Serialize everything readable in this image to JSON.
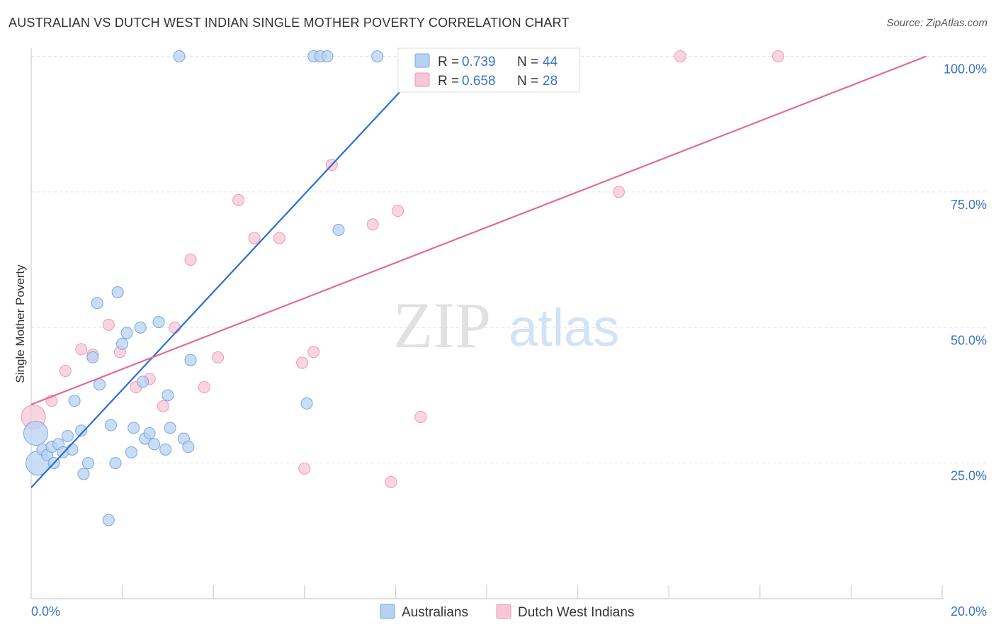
{
  "title": "AUSTRALIAN VS DUTCH WEST INDIAN SINGLE MOTHER POVERTY CORRELATION CHART",
  "source": "Source: ZipAtlas.com",
  "watermark": {
    "zip": "ZIP",
    "atlas": "atlas"
  },
  "colors": {
    "blue_fill": "#b7d1f3",
    "blue_stroke": "#7aa6dd",
    "blue_line": "#2a6fd1",
    "pink_fill": "#f8c6d5",
    "pink_stroke": "#ec9bb5",
    "pink_line": "#e06c94",
    "tick_color": "#3b73c8"
  },
  "legend": {
    "blue": {
      "r_label": "R =",
      "r_value": "0.739",
      "n_label": "N =",
      "n_value": "44"
    },
    "pink": {
      "r_label": "R =",
      "r_value": "0.658",
      "n_label": "N =",
      "n_value": "28"
    }
  },
  "chart_data": {
    "type": "scatter",
    "title": "AUSTRALIAN VS DUTCH WEST INDIAN SINGLE MOTHER POVERTY CORRELATION CHART",
    "xlabel": "",
    "ylabel": "Single Mother Poverty",
    "xlim": [
      0,
      20
    ],
    "ylim": [
      0,
      102.5
    ],
    "x_tick_labels": [
      "0.0%",
      "20.0%"
    ],
    "y_ticks": [
      25,
      50,
      75,
      100
    ],
    "y_tick_labels": [
      "25.0%",
      "50.0%",
      "75.0%",
      "100.0%"
    ],
    "grid": true,
    "series": [
      {
        "name": "Australians",
        "color": "#b7d1f3",
        "r": 0.739,
        "n": 44,
        "trendline": {
          "x": [
            0,
            8.1
          ],
          "y": [
            20.5,
            93.5
          ]
        },
        "points": [
          [
            0.1,
            30.5,
            "large"
          ],
          [
            0.15,
            25,
            "large"
          ],
          [
            0.25,
            27.5
          ],
          [
            0.35,
            26.5
          ],
          [
            0.45,
            28
          ],
          [
            0.5,
            25
          ],
          [
            0.6,
            28.5
          ],
          [
            0.7,
            27
          ],
          [
            0.8,
            30
          ],
          [
            0.9,
            27.5
          ],
          [
            0.95,
            36.5
          ],
          [
            1.1,
            31
          ],
          [
            1.15,
            23
          ],
          [
            1.25,
            25
          ],
          [
            1.35,
            44.5
          ],
          [
            1.45,
            54.5
          ],
          [
            1.5,
            39.5
          ],
          [
            1.7,
            14.5
          ],
          [
            1.75,
            32
          ],
          [
            1.85,
            25
          ],
          [
            1.9,
            56.5
          ],
          [
            2.0,
            47
          ],
          [
            2.1,
            49
          ],
          [
            2.2,
            27
          ],
          [
            2.25,
            31.5
          ],
          [
            2.4,
            50
          ],
          [
            2.45,
            40
          ],
          [
            2.5,
            29.5
          ],
          [
            2.6,
            30.5
          ],
          [
            2.7,
            28.5
          ],
          [
            2.8,
            51
          ],
          [
            2.95,
            27.5
          ],
          [
            3.0,
            37.5
          ],
          [
            3.05,
            31.5
          ],
          [
            3.25,
            100
          ],
          [
            3.35,
            29.5
          ],
          [
            3.45,
            28
          ],
          [
            3.5,
            44
          ],
          [
            6.05,
            36
          ],
          [
            6.2,
            100
          ],
          [
            6.35,
            100
          ],
          [
            6.5,
            100
          ],
          [
            6.75,
            68
          ],
          [
            7.6,
            100
          ]
        ]
      },
      {
        "name": "Dutch West Indians",
        "color": "#f8c6d5",
        "r": 0.658,
        "n": 28,
        "trendline": {
          "x": [
            0,
            19.65
          ],
          "y": [
            35.8,
            100
          ]
        },
        "points": [
          [
            0.05,
            33.5,
            "large"
          ],
          [
            0.45,
            36.5
          ],
          [
            0.75,
            42
          ],
          [
            1.1,
            46
          ],
          [
            1.35,
            45
          ],
          [
            1.7,
            50.5
          ],
          [
            1.95,
            45.5
          ],
          [
            2.3,
            39
          ],
          [
            2.6,
            40.5
          ],
          [
            2.9,
            35.5
          ],
          [
            3.15,
            50
          ],
          [
            3.5,
            62.5
          ],
          [
            3.8,
            39
          ],
          [
            4.1,
            44.5
          ],
          [
            4.55,
            73.5
          ],
          [
            4.9,
            66.5
          ],
          [
            5.45,
            66.5
          ],
          [
            5.95,
            43.5
          ],
          [
            6.0,
            24
          ],
          [
            6.2,
            45.5
          ],
          [
            6.6,
            80
          ],
          [
            7.5,
            69
          ],
          [
            7.9,
            21.5
          ],
          [
            8.05,
            71.5
          ],
          [
            8.55,
            33.5
          ],
          [
            12.9,
            75
          ],
          [
            14.25,
            100
          ],
          [
            16.4,
            100
          ]
        ]
      }
    ]
  }
}
